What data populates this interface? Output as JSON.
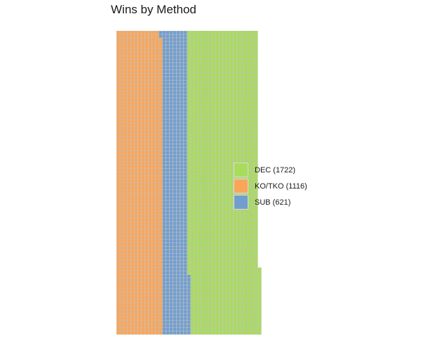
{
  "chart_data": {
    "type": "waffle",
    "title": "Wins by Method",
    "rows": 86,
    "fill_order": "column-major, bottom-to-top",
    "categories": [
      {
        "name": "KO/TKO",
        "count": 1116,
        "color": "#f9a65a",
        "label": "KO/TKO (1116)"
      },
      {
        "name": "SUB",
        "count": 621,
        "color": "#729ece",
        "label": "SUB (621)"
      },
      {
        "name": "DEC",
        "count": 1722,
        "color": "#a9dc5c",
        "label": "DEC (1722)"
      }
    ],
    "legend": {
      "position": "right",
      "order": [
        "DEC",
        "KO/TKO",
        "SUB"
      ],
      "labels": [
        "DEC (1722)",
        "KO/TKO (1116)",
        "SUB (621)"
      ]
    },
    "grid_line_color": "#bdbdbd",
    "background": "#ffffff"
  }
}
